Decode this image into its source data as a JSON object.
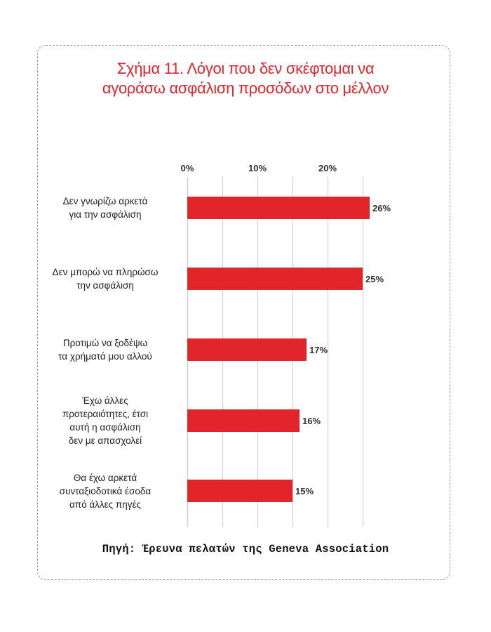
{
  "chart_data": {
    "type": "bar",
    "orientation": "horizontal",
    "title_lines": [
      "Σχήμα 11. Λόγοι που δεν σκέφτομαι να",
      "αγοράσω ασφάλιση προσόδων στο μέλλον"
    ],
    "categories": [
      [
        "Δεν γνωρίζω αρκετά",
        "για την ασφάλιση"
      ],
      [
        "Δεν μπορώ να πληρώσω",
        "την ασφάλιση"
      ],
      [
        "Προτιμώ να ξοδέψω",
        "τα χρήματά μου αλλού"
      ],
      [
        "Έχω άλλες",
        "προτεραιότητες, έτσι",
        "αυτή η ασφάλιση",
        "δεν με απασχολεί"
      ],
      [
        "Θα έχω αρκετά",
        "συνταξιοδοτικά έσοδα",
        "από άλλες πηγές"
      ]
    ],
    "values": [
      26,
      25,
      17,
      16,
      15
    ],
    "value_labels": [
      "26%",
      "25%",
      "17%",
      "16%",
      "15%"
    ],
    "xlim": [
      0,
      25
    ],
    "x_ticks": [
      0,
      10,
      20
    ],
    "x_tick_labels": [
      "0%",
      "10%",
      "20%"
    ],
    "grid_step": 5,
    "bar_color": "#e0262a",
    "grid_color": "#cfcfcf",
    "legend": "none"
  },
  "source": "Πηγή: Έρευνα πελατών της Geneva Association"
}
